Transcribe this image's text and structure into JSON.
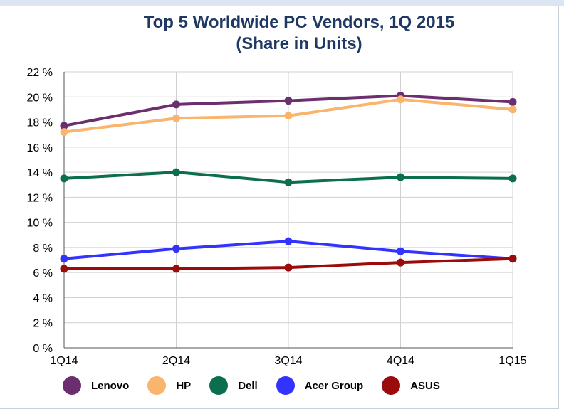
{
  "chart_data": {
    "type": "line",
    "title": "Top 5 Worldwide PC Vendors, 1Q 2015",
    "subtitle": "(Share in Units)",
    "x": [
      "1Q14",
      "2Q14",
      "3Q14",
      "4Q14",
      "1Q15"
    ],
    "yticks": [
      "0 %",
      "2 %",
      "4 %",
      "6 %",
      "8 %",
      "10 %",
      "12 %",
      "14 %",
      "16 %",
      "18 %",
      "20 %",
      "22 %"
    ],
    "ylim": [
      0,
      22
    ],
    "grid": true,
    "legend_position": "bottom",
    "series": [
      {
        "name": "Lenovo",
        "color": "#6b2e6e",
        "values": [
          17.7,
          19.4,
          19.7,
          20.1,
          19.6
        ]
      },
      {
        "name": "HP",
        "color": "#f9b46e",
        "values": [
          17.2,
          18.3,
          18.5,
          19.8,
          19.0
        ]
      },
      {
        "name": "Dell",
        "color": "#0b6e4f",
        "values": [
          13.5,
          14.0,
          13.2,
          13.6,
          13.5
        ]
      },
      {
        "name": "Acer Group",
        "color": "#3333ff",
        "values": [
          7.1,
          7.9,
          8.5,
          7.7,
          7.1
        ]
      },
      {
        "name": "ASUS",
        "color": "#9b0b0b",
        "values": [
          6.3,
          6.3,
          6.4,
          6.8,
          7.1
        ]
      }
    ]
  }
}
